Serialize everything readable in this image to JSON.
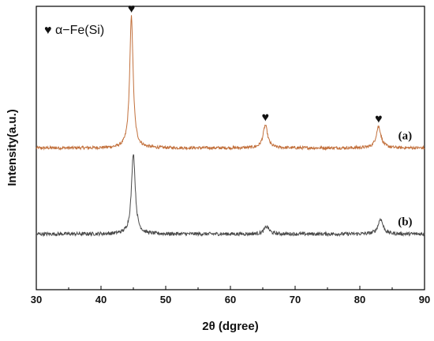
{
  "chart_data": {
    "type": "line",
    "xlabel": "2θ (dgree)",
    "ylabel": "Intensity(a.u.)",
    "xlim": [
      30,
      90
    ],
    "xticks": [
      30,
      40,
      50,
      60,
      70,
      80,
      90
    ],
    "grid": false,
    "legend": {
      "symbol": "♥",
      "text": "α−Fe(Si)",
      "position": "top-left"
    },
    "peak_marker": "♥",
    "peak_markers_series": "(a)",
    "series": [
      {
        "label": "(a)",
        "color": "#c2703c",
        "baseline": 0.56,
        "noise": 0.006,
        "peaks": [
          {
            "x": 44.7,
            "height": 0.52,
            "width": 0.32
          },
          {
            "x": 65.4,
            "height": 0.09,
            "width": 0.42
          },
          {
            "x": 82.9,
            "height": 0.085,
            "width": 0.45
          }
        ]
      },
      {
        "label": "(b)",
        "color": "#4a4a4a",
        "baseline": 0.22,
        "noise": 0.007,
        "peaks": [
          {
            "x": 45.0,
            "height": 0.32,
            "width": 0.35
          },
          {
            "x": 65.6,
            "height": 0.03,
            "width": 0.45
          },
          {
            "x": 83.2,
            "height": 0.06,
            "width": 0.45
          }
        ]
      }
    ],
    "ylim": [
      0,
      1.12
    ]
  }
}
